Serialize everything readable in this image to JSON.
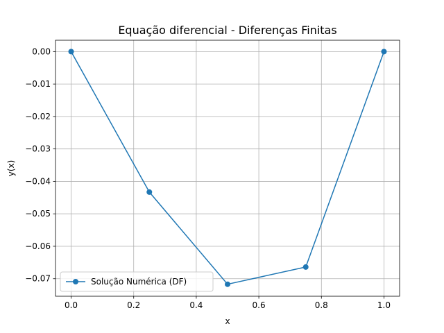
{
  "chart_data": {
    "type": "line",
    "title": "Equação diferencial - Diferenças Finitas",
    "xlabel": "x",
    "ylabel": "y(x)",
    "xlim": [
      -0.05,
      1.05
    ],
    "ylim": [
      -0.0754,
      0.0035
    ],
    "xticks": [
      0.0,
      0.2,
      0.4,
      0.6,
      0.8,
      1.0
    ],
    "xtick_labels": [
      "0.0",
      "0.2",
      "0.4",
      "0.6",
      "0.8",
      "1.0"
    ],
    "yticks": [
      0.0,
      -0.01,
      -0.02,
      -0.03,
      -0.04,
      -0.05,
      -0.06,
      -0.07
    ],
    "ytick_labels": [
      "0.00",
      "−0.01",
      "−0.02",
      "−0.03",
      "−0.04",
      "−0.05",
      "−0.06",
      "−0.07"
    ],
    "grid": true,
    "legend_position": "lower-left",
    "series": [
      {
        "name": "Solução Numérica (DF)",
        "color": "#1f77b4",
        "marker": "circle",
        "x": [
          0.0,
          0.25,
          0.5,
          0.75,
          1.0
        ],
        "y": [
          0.0,
          -0.0433,
          -0.0717,
          -0.0664,
          0.0
        ]
      }
    ]
  }
}
